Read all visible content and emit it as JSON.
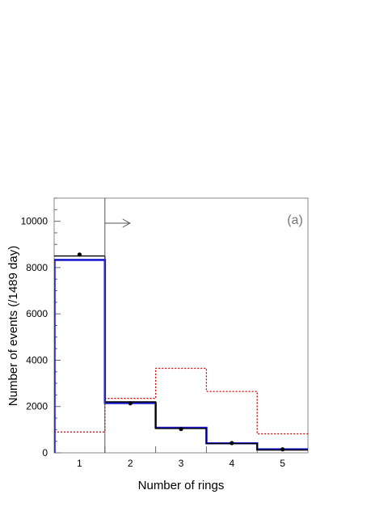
{
  "chart_data": {
    "type": "histogram",
    "panel_label": "(a)",
    "xlabel": "Number of rings",
    "ylabel": "Number of events (/1489 day)",
    "x_ticks": [
      "1",
      "2",
      "3",
      "4",
      "5"
    ],
    "y_ticks": [
      "0",
      "2000",
      "4000",
      "6000",
      "8000",
      "10000"
    ],
    "xlim": [
      0.5,
      5.5
    ],
    "ylim": [
      0,
      11000
    ],
    "bin_edges": [
      0.5,
      1.5,
      2.5,
      3.5,
      4.5,
      5.5
    ],
    "series": [
      {
        "style": "black-solid",
        "color": "#000000",
        "values": [
          8500,
          2200,
          1050,
          400,
          120
        ]
      },
      {
        "style": "blue-thick",
        "color": "#1a1acc",
        "values": [
          8330,
          2150,
          1080,
          410,
          150
        ]
      },
      {
        "style": "red-dotted",
        "color": "#d40000",
        "values": [
          900,
          2350,
          3650,
          2650,
          820
        ]
      }
    ],
    "data_points": {
      "x": [
        1,
        2,
        3,
        4,
        5
      ],
      "y": [
        8560,
        2140,
        1030,
        420,
        150
      ]
    },
    "cut_line_x": 1.5,
    "cut_arrow_direction": "right"
  }
}
